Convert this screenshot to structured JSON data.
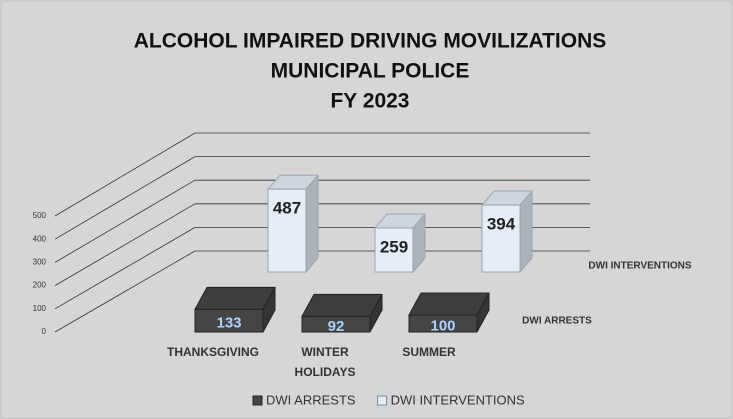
{
  "chart_data": {
    "type": "bar3d",
    "title": [
      "ALCOHOL IMPAIRED DRIVING MOVILIZATIONS",
      "MUNICIPAL POLICE",
      "FY 2023"
    ],
    "categories": [
      "THANKSGIVING",
      "WINTER HOLIDAYS",
      "SUMMER"
    ],
    "series": [
      {
        "name": "DWI ARRESTS",
        "color": "#454545",
        "values": [
          133,
          92,
          100
        ]
      },
      {
        "name": "DWI INTERVENTIONS",
        "color": "#e4edf8",
        "values": [
          487,
          259,
          394
        ]
      }
    ],
    "ylim": [
      0,
      500
    ],
    "yticks": [
      0,
      100,
      200,
      300,
      400,
      500
    ],
    "grid": true,
    "legend": "bottom"
  }
}
